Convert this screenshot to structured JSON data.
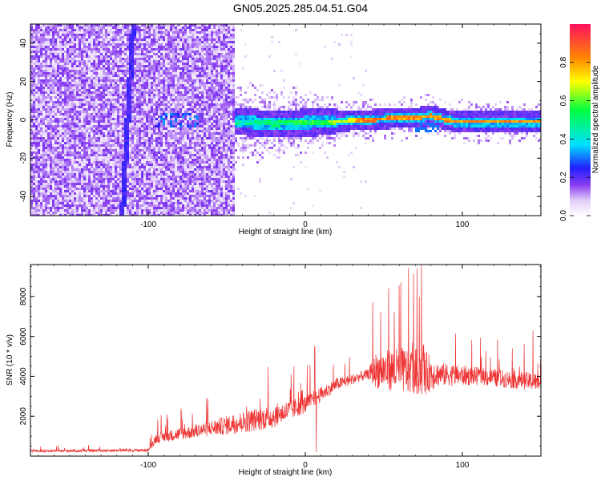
{
  "title": "GN05.2025.285.04.51.G04",
  "chart_data": [
    {
      "type": "heatmap",
      "name": "spectrogram",
      "xlabel": "Height of straight line (km)",
      "ylabel": "Frequency (Hz)",
      "xlim": [
        -175,
        150
      ],
      "ylim": [
        -50,
        50
      ],
      "xticks": [
        -100,
        0,
        100
      ],
      "yticks": [
        -40,
        -20,
        0,
        20,
        40
      ],
      "colorbar": {
        "label": "Normalized spectral amplitude",
        "range": [
          0,
          1
        ],
        "ticks": [
          0.0,
          0.2,
          0.4,
          0.6,
          0.8
        ]
      },
      "regions": [
        {
          "x": [
            -175,
            -45
          ],
          "description": "broadband noise filling all frequencies"
        },
        {
          "x": [
            -45,
            150
          ],
          "signal_center_hz": 0,
          "description": "narrow band near 0 Hz, strong (red) above ~20 km"
        }
      ],
      "ridge": [
        {
          "x": -45,
          "y": -1
        },
        {
          "x": -20,
          "y": -2
        },
        {
          "x": 0,
          "y": -1.5
        },
        {
          "x": 20,
          "y": -1
        },
        {
          "x": 40,
          "y": 0
        },
        {
          "x": 60,
          "y": 1
        },
        {
          "x": 75,
          "y": 1.5
        },
        {
          "x": 80,
          "y": 2
        },
        {
          "x": 95,
          "y": -1
        },
        {
          "x": 110,
          "y": -1
        },
        {
          "x": 130,
          "y": -1
        },
        {
          "x": 150,
          "y": -1
        }
      ]
    },
    {
      "type": "line",
      "name": "snr",
      "xlabel": "Height of straight line (km)",
      "ylabel": "SNR (10 * v/v)",
      "xlim": [
        -175,
        150
      ],
      "ylim": [
        0,
        9600
      ],
      "xticks": [
        -100,
        0,
        100
      ],
      "yticks": [
        2000,
        4000,
        6000,
        8000
      ],
      "color": "#ee3333",
      "envelope": [
        {
          "x": -175,
          "base": 250,
          "spread": 120
        },
        {
          "x": -100,
          "base": 300,
          "spread": 150
        },
        {
          "x": -95,
          "base": 900,
          "spread": 500
        },
        {
          "x": -60,
          "base": 1400,
          "spread": 800
        },
        {
          "x": -40,
          "base": 1700,
          "spread": 1100
        },
        {
          "x": -20,
          "base": 2000,
          "spread": 1200
        },
        {
          "x": 0,
          "base": 2600,
          "spread": 900
        },
        {
          "x": 20,
          "base": 3600,
          "spread": 600
        },
        {
          "x": 40,
          "base": 4100,
          "spread": 500
        },
        {
          "x": 45,
          "base": 4300,
          "spread": 1800
        },
        {
          "x": 60,
          "base": 4300,
          "spread": 2300
        },
        {
          "x": 75,
          "base": 4200,
          "spread": 2400
        },
        {
          "x": 85,
          "base": 4100,
          "spread": 1200
        },
        {
          "x": 110,
          "base": 4000,
          "spread": 900
        },
        {
          "x": 150,
          "base": 3700,
          "spread": 900
        }
      ],
      "peaks": [
        {
          "x": 74,
          "y": 9600
        },
        {
          "x": 53,
          "y": 8400
        },
        {
          "x": 43,
          "y": 7700
        },
        {
          "x": 6,
          "y": 5500
        },
        {
          "x": 145,
          "y": 6300
        },
        {
          "x": 7,
          "y": 200
        }
      ]
    }
  ]
}
